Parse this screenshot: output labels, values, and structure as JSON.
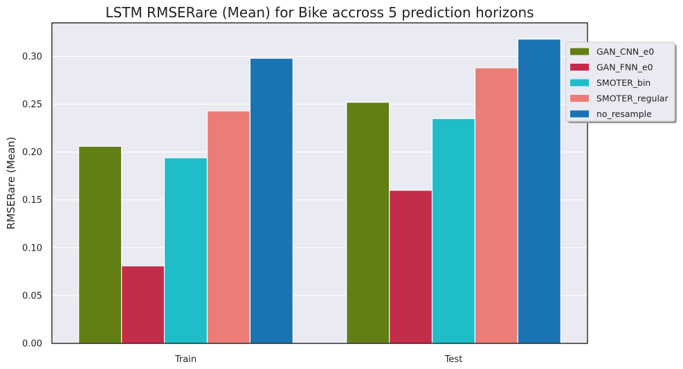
{
  "chart_data": {
    "type": "bar",
    "title": "LSTM RMSERare (Mean) for Bike accross 5 prediction horizons",
    "xlabel": "",
    "ylabel": "RMSERare (Mean)",
    "categories": [
      "Train",
      "Test"
    ],
    "ylim": [
      0,
      0.335
    ],
    "yticks": [
      "0.00",
      "0.05",
      "0.10",
      "0.15",
      "0.20",
      "0.25",
      "0.30"
    ],
    "grid": true,
    "legend_position": "upper-right outside",
    "series": [
      {
        "name": "GAN_CNN_e0",
        "color": "#627f16",
        "values": [
          0.206,
          0.252
        ]
      },
      {
        "name": "GAN_FNN_e0",
        "color": "#c42c4b",
        "values": [
          0.081,
          0.16
        ]
      },
      {
        "name": "SMOTER_bin",
        "color": "#1ebdc8",
        "values": [
          0.194,
          0.235
        ]
      },
      {
        "name": "SMOTER_regular",
        "color": "#ec7d76",
        "values": [
          0.243,
          0.288
        ]
      },
      {
        "name": "no_resample",
        "color": "#1a74b3",
        "values": [
          0.298,
          0.318
        ]
      }
    ],
    "colors": {
      "plot_background": "#eaeaf2",
      "grid": "#ffffff",
      "frame": "#000000"
    }
  }
}
